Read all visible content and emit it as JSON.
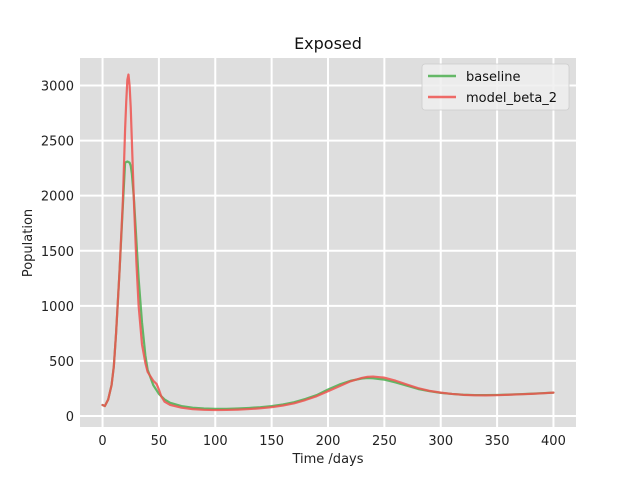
{
  "chart_data": {
    "type": "line",
    "title": "Exposed",
    "xlabel": "Time /days",
    "ylabel": "Population",
    "xlim": [
      -20,
      420
    ],
    "ylim": [
      -100,
      3250
    ],
    "xticks": [
      0,
      50,
      100,
      150,
      200,
      250,
      300,
      350,
      400
    ],
    "yticks": [
      0,
      500,
      1000,
      1500,
      2000,
      2500,
      3000
    ],
    "grid": true,
    "legend_position": "top-right",
    "series": [
      {
        "name": "baseline",
        "color": "#4caf50",
        "x": [
          0,
          2,
          5,
          8,
          10,
          12,
          15,
          18,
          20,
          22,
          24,
          25,
          26,
          28,
          30,
          32,
          35,
          38,
          40,
          45,
          50,
          55,
          60,
          70,
          80,
          90,
          100,
          110,
          120,
          130,
          140,
          150,
          160,
          170,
          180,
          190,
          200,
          210,
          220,
          230,
          235,
          240,
          250,
          260,
          270,
          280,
          290,
          300,
          310,
          320,
          330,
          340,
          350,
          360,
          370,
          380,
          390,
          400
        ],
        "values": [
          100,
          90,
          150,
          280,
          450,
          750,
          1300,
          1900,
          2300,
          2310,
          2300,
          2270,
          2200,
          1950,
          1600,
          1250,
          850,
          550,
          420,
          280,
          200,
          150,
          120,
          90,
          75,
          68,
          65,
          65,
          68,
          73,
          80,
          90,
          105,
          125,
          155,
          190,
          240,
          285,
          320,
          340,
          345,
          342,
          330,
          305,
          275,
          245,
          225,
          210,
          200,
          193,
          190,
          190,
          191,
          194,
          198,
          202,
          207,
          212
        ]
      },
      {
        "name": "model_beta_2",
        "color": "#ef5350",
        "x": [
          0,
          2,
          5,
          8,
          10,
          12,
          15,
          18,
          20,
          21,
          22,
          23,
          24,
          25,
          26,
          28,
          30,
          32,
          35,
          38,
          40,
          45,
          48,
          50,
          52,
          55,
          60,
          70,
          80,
          90,
          100,
          110,
          120,
          130,
          140,
          150,
          160,
          170,
          180,
          190,
          200,
          210,
          220,
          230,
          235,
          240,
          250,
          260,
          270,
          280,
          290,
          300,
          310,
          320,
          330,
          340,
          350,
          360,
          370,
          380,
          390,
          400
        ],
        "values": [
          100,
          90,
          150,
          280,
          450,
          750,
          1300,
          1950,
          2600,
          2850,
          3050,
          3100,
          3000,
          2800,
          2500,
          1900,
          1400,
          1000,
          650,
          480,
          400,
          320,
          290,
          240,
          180,
          130,
          100,
          75,
          62,
          56,
          54,
          55,
          58,
          63,
          70,
          80,
          95,
          115,
          145,
          180,
          225,
          270,
          315,
          345,
          355,
          358,
          348,
          320,
          285,
          252,
          228,
          212,
          200,
          192,
          188,
          187,
          189,
          193,
          197,
          201,
          206,
          212
        ]
      }
    ]
  }
}
